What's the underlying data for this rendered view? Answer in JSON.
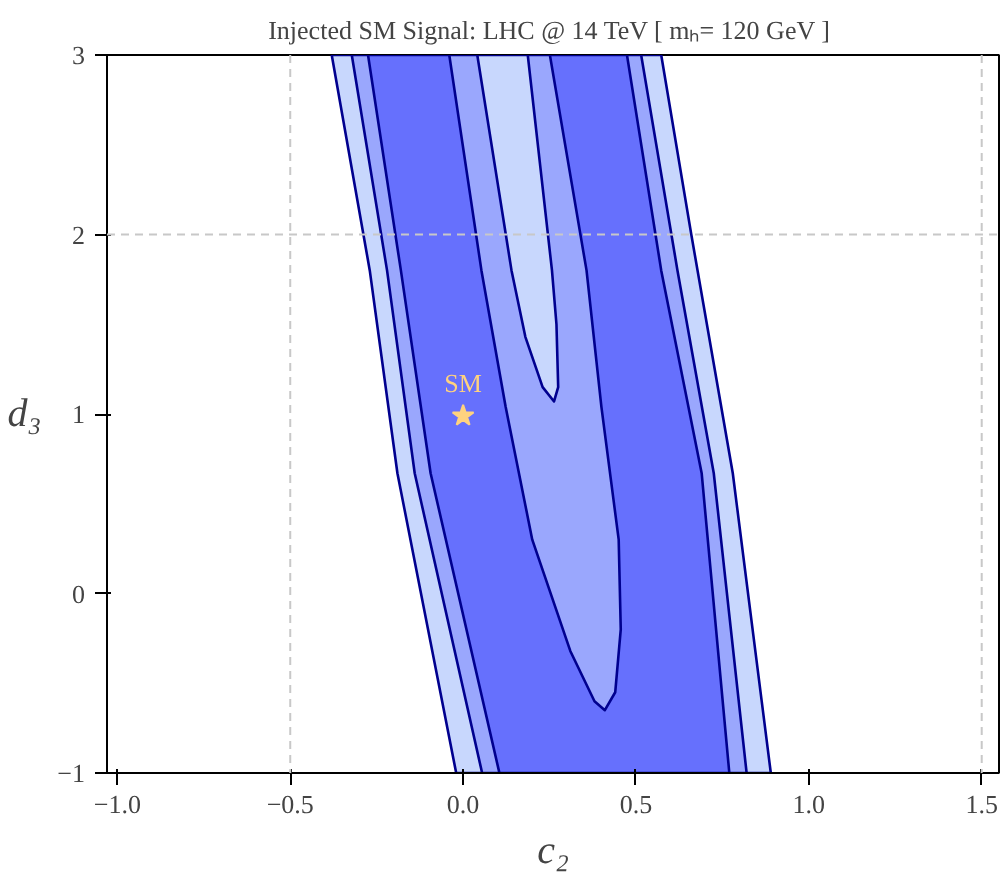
{
  "chart_data": {
    "type": "area",
    "title": "Injected SM Signal:  LHC @ 14 TeV [ mₕ= 120 GeV ]",
    "xlabel": "c₂",
    "ylabel": "d₃",
    "xlim": [
      -1.03,
      1.55
    ],
    "ylim": [
      -1,
      3
    ],
    "xticks": [
      {
        "value": -1,
        "label": "−1.0"
      },
      {
        "value": -0.5,
        "label": "−0.5"
      },
      {
        "value": 0,
        "label": "0.0"
      },
      {
        "value": 0.5,
        "label": "0.5"
      },
      {
        "value": 1,
        "label": "1.0"
      },
      {
        "value": 1.5,
        "label": "1.5"
      }
    ],
    "yticks": [
      {
        "value": -1,
        "label": "−1"
      },
      0,
      1,
      2,
      3
    ],
    "grid": false,
    "ref_lines": [
      {
        "axis": "x",
        "value": -0.5,
        "color": "#c8c8c8",
        "line_style": "dashed"
      },
      {
        "axis": "x",
        "value": 1.5,
        "color": "#c8c8c8",
        "line_style": "dashed"
      },
      {
        "axis": "y",
        "value": 2,
        "color": "#c8c8c8",
        "line_style": "dashed"
      }
    ],
    "series": [
      {
        "color": "#c8d7fd",
        "x": [
          -0.38,
          -0.27,
          -0.19,
          -0.02,
          0.89,
          0.78,
          0.66,
          0.573
        ],
        "values": [
          3,
          1.8,
          0.67,
          -1,
          -1,
          0.67,
          2,
          3
        ]
      },
      {
        "color": "#9aa7fd",
        "x": [
          -0.322,
          -0.22,
          -0.14,
          0.055,
          0.82,
          0.725,
          0.62,
          0.515
        ],
        "values": [
          3,
          1.8,
          0.67,
          -1,
          -1,
          0.67,
          1.8,
          3
        ]
      },
      {
        "color": "#6670fd",
        "x": [
          -0.275,
          -0.18,
          -0.094,
          0.105,
          0.77,
          0.69,
          0.573,
          0.474
        ],
        "values": [
          3,
          1.8,
          0.67,
          -1,
          -1,
          0.67,
          1.8,
          3
        ]
      },
      {
        "color": "#9aa7fd",
        "x": [
          -0.04,
          0.053,
          0.123,
          0.2,
          0.31,
          0.38,
          0.41,
          0.44,
          0.456,
          0.45,
          0.4,
          0.357,
          0.251
        ],
        "values": [
          3,
          1.8,
          1.04,
          0.3,
          -0.32,
          -0.6,
          -0.65,
          -0.55,
          -0.2,
          0.3,
          1.04,
          1.8,
          3
        ]
      },
      {
        "color": "#c8d7fd",
        "x": [
          0.041,
          0.14,
          0.18,
          0.23,
          0.263,
          0.275,
          0.27,
          0.257,
          0.187
        ],
        "values": [
          3,
          1.8,
          1.43,
          1.15,
          1.07,
          1.15,
          1.5,
          1.8,
          3
        ]
      },
      {
        "type": "scatter",
        "name": "SM",
        "marker": "star",
        "color": "#ffd27f",
        "x": [
          0.0
        ],
        "values": [
          0.99
        ]
      }
    ]
  }
}
